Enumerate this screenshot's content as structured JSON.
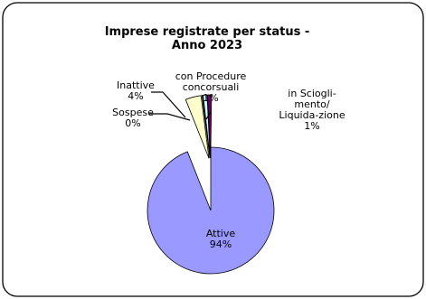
{
  "chart_data": {
    "type": "pie",
    "title_lines": [
      "Imprese registrate per status -",
      "Anno 2023"
    ],
    "slices": [
      {
        "name": "Attive",
        "value": 94,
        "label_lines": [
          "Attive",
          "94%"
        ],
        "color": "#9999ff",
        "exploded": false
      },
      {
        "name": "Inattive",
        "value": 4,
        "label_lines": [
          "Inattive",
          "4%"
        ],
        "color": "#ffffcc",
        "exploded": true
      },
      {
        "name": "Sospese",
        "value": 0,
        "label_lines": [
          "Sospese",
          "0%"
        ],
        "color": "#cccccc",
        "exploded": true
      },
      {
        "name": "con Procedure concorsuali",
        "value": 1,
        "label_lines": [
          "con Procedure",
          "concorsuali",
          "1%"
        ],
        "color": "#ccffff",
        "exploded": true
      },
      {
        "name": "in Scioglimento/Liquidazione",
        "value": 1,
        "label_lines": [
          "in Sciogli-",
          "mento/",
          "Liquida-zione",
          "1%"
        ],
        "color": "#660066",
        "exploded": true
      }
    ],
    "legend": "none"
  }
}
